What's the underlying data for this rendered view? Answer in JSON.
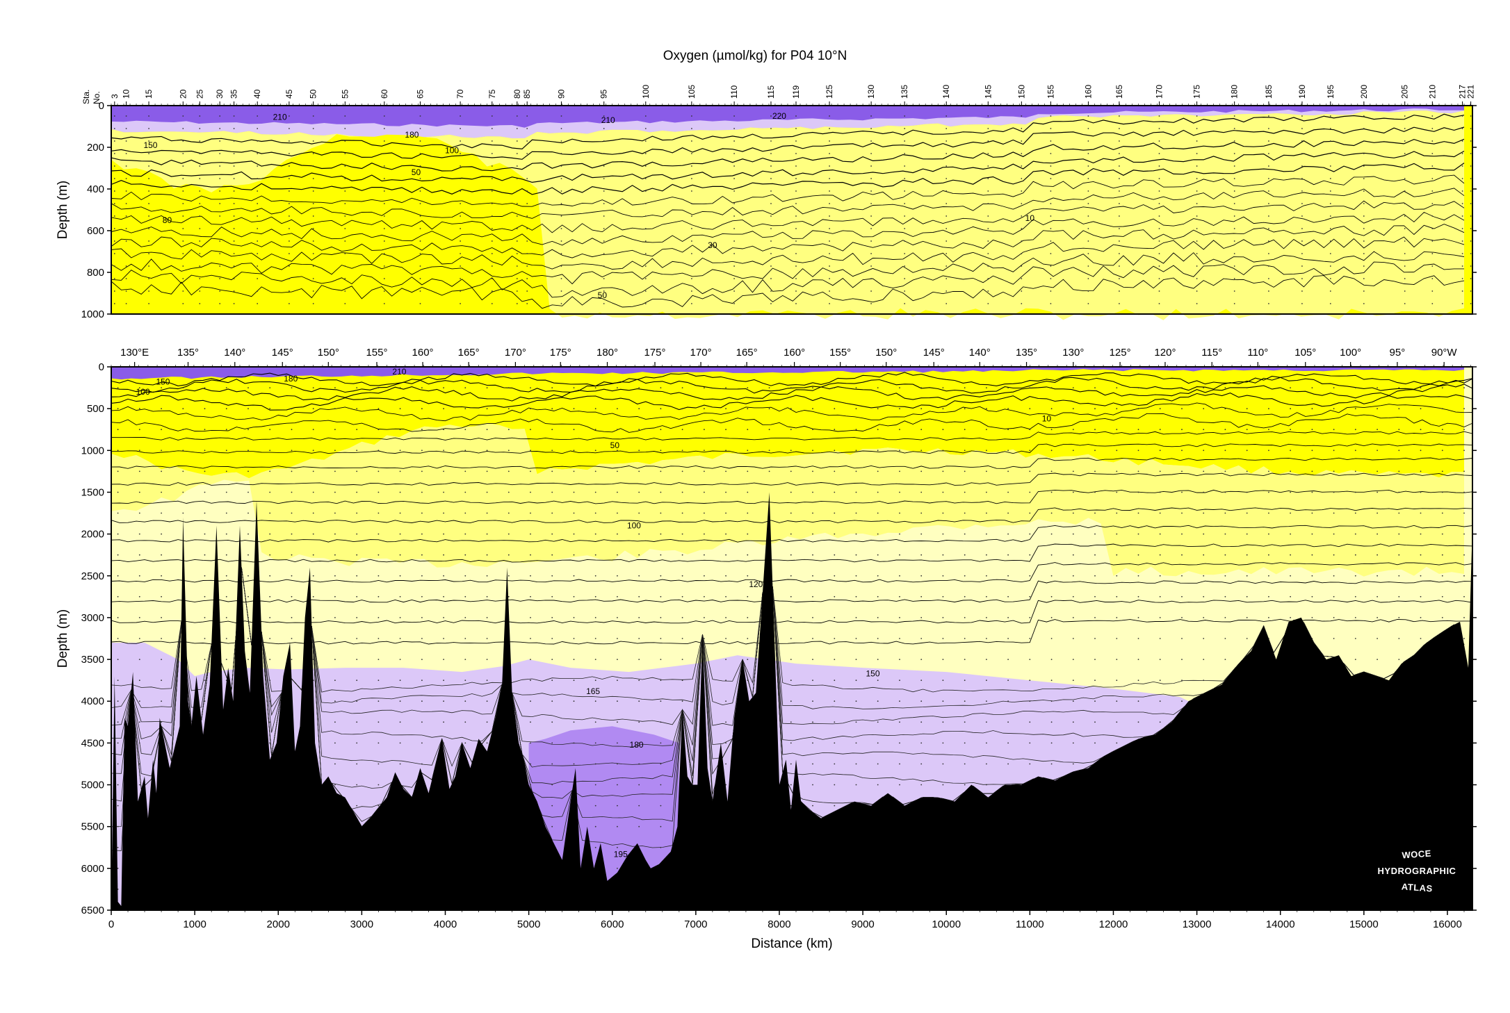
{
  "figure": {
    "title": "Oxygen (µmol/kg) for P04 10°N",
    "ylabel_top": "Depth (m)",
    "ylabel_bottom": "Depth (m)",
    "xlabel": "Distance (km)",
    "station_axis_label": [
      "Sta.",
      "No."
    ],
    "logo": [
      "WOCE",
      "HYDROGRAPHIC",
      "ATLAS"
    ]
  },
  "colors": {
    "very_low": "#ffff00",
    "low": "#ffff80",
    "mid": "#ffffc0",
    "high": "#dcc8f8",
    "higher": "#b18af2",
    "highest": "#8a5ce8",
    "bathymetry": "#000000",
    "contour": "#000000"
  },
  "chart_data": [
    {
      "type": "heatmap",
      "panel": "upper",
      "variable": "Oxygen",
      "units": "µmol/kg",
      "ylabel": "Depth (m)",
      "xlim": [
        0,
        16300
      ],
      "ylim": [
        1000,
        0
      ],
      "yticks": [
        0,
        200,
        400,
        600,
        800,
        1000
      ],
      "station_ticks": [
        {
          "label": "3",
          "km": 40
        },
        {
          "label": "10",
          "km": 180
        },
        {
          "label": "15",
          "km": 450
        },
        {
          "label": "20",
          "km": 860
        },
        {
          "label": "25",
          "km": 1060
        },
        {
          "label": "30",
          "km": 1300
        },
        {
          "label": "35",
          "km": 1470
        },
        {
          "label": "40",
          "km": 1750
        },
        {
          "label": "45",
          "km": 2130
        },
        {
          "label": "50",
          "km": 2420
        },
        {
          "label": "55",
          "km": 2800
        },
        {
          "label": "60",
          "km": 3270
        },
        {
          "label": "65",
          "km": 3700
        },
        {
          "label": "70",
          "km": 4180
        },
        {
          "label": "75",
          "km": 4560
        },
        {
          "label": "80",
          "km": 4860
        },
        {
          "label": "85",
          "km": 4980
        },
        {
          "label": "90",
          "km": 5390
        },
        {
          "label": "95",
          "km": 5900
        },
        {
          "label": "100",
          "km": 6400
        },
        {
          "label": "105",
          "km": 6950
        },
        {
          "label": "110",
          "km": 7460
        },
        {
          "label": "115",
          "km": 7900
        },
        {
          "label": "119",
          "km": 8200
        },
        {
          "label": "125",
          "km": 8600
        },
        {
          "label": "130",
          "km": 9100
        },
        {
          "label": "135",
          "km": 9500
        },
        {
          "label": "140",
          "km": 10000
        },
        {
          "label": "145",
          "km": 10500
        },
        {
          "label": "150",
          "km": 10900
        },
        {
          "label": "155",
          "km": 11250
        },
        {
          "label": "160",
          "km": 11700
        },
        {
          "label": "165",
          "km": 12070
        },
        {
          "label": "170",
          "km": 12550
        },
        {
          "label": "175",
          "km": 13000
        },
        {
          "label": "180",
          "km": 13450
        },
        {
          "label": "185",
          "km": 13860
        },
        {
          "label": "190",
          "km": 14260
        },
        {
          "label": "195",
          "km": 14600
        },
        {
          "label": "200",
          "km": 15000
        },
        {
          "label": "205",
          "km": 15490
        },
        {
          "label": "210",
          "km": 15820
        },
        {
          "label": "217",
          "km": 16180
        },
        {
          "label": "221",
          "km": 16280
        }
      ],
      "contour_labels": [
        {
          "text": "210",
          "km": 2020,
          "depth": 55
        },
        {
          "text": "210",
          "km": 5950,
          "depth": 70
        },
        {
          "text": "220",
          "km": 8000,
          "depth": 50
        },
        {
          "text": "180",
          "km": 3600,
          "depth": 140
        },
        {
          "text": "150",
          "km": 470,
          "depth": 190
        },
        {
          "text": "100",
          "km": 4080,
          "depth": 215
        },
        {
          "text": "50",
          "km": 3650,
          "depth": 320
        },
        {
          "text": "80",
          "km": 670,
          "depth": 550
        },
        {
          "text": "30",
          "km": 7200,
          "depth": 670
        },
        {
          "text": "10",
          "km": 11000,
          "depth": 540
        },
        {
          "text": "50",
          "km": 5880,
          "depth": 910
        }
      ]
    },
    {
      "type": "heatmap",
      "panel": "lower",
      "variable": "Oxygen",
      "units": "µmol/kg",
      "xlabel": "Distance (km)",
      "ylabel": "Depth (m)",
      "xlim": [
        0,
        16300
      ],
      "ylim": [
        6500,
        0
      ],
      "xticks": [
        0,
        1000,
        2000,
        3000,
        4000,
        5000,
        6000,
        7000,
        8000,
        9000,
        10000,
        11000,
        12000,
        13000,
        14000,
        15000,
        16000
      ],
      "yticks": [
        0,
        500,
        1000,
        1500,
        2000,
        2500,
        3000,
        3500,
        4000,
        4500,
        5000,
        5500,
        6000,
        6500
      ],
      "longitude_ticks": [
        {
          "label": "130°E",
          "km": 280
        },
        {
          "label": "135°",
          "km": 920
        },
        {
          "label": "140°",
          "km": 1480
        },
        {
          "label": "145°",
          "km": 2050
        },
        {
          "label": "150°",
          "km": 2600
        },
        {
          "label": "155°",
          "km": 3180
        },
        {
          "label": "160°",
          "km": 3730
        },
        {
          "label": "165°",
          "km": 4280
        },
        {
          "label": "170°",
          "km": 4840
        },
        {
          "label": "175°",
          "km": 5380
        },
        {
          "label": "180°",
          "km": 5940
        },
        {
          "label": "175°",
          "km": 6510
        },
        {
          "label": "170°",
          "km": 7060
        },
        {
          "label": "165°",
          "km": 7610
        },
        {
          "label": "160°",
          "km": 8180
        },
        {
          "label": "155°",
          "km": 8730
        },
        {
          "label": "150°",
          "km": 9280
        },
        {
          "label": "145°",
          "km": 9850
        },
        {
          "label": "140°",
          "km": 10400
        },
        {
          "label": "135°",
          "km": 10960
        },
        {
          "label": "130°",
          "km": 11520
        },
        {
          "label": "125°",
          "km": 12080
        },
        {
          "label": "120°",
          "km": 12620
        },
        {
          "label": "115°",
          "km": 13180
        },
        {
          "label": "110°",
          "km": 13730
        },
        {
          "label": "105°",
          "km": 14300
        },
        {
          "label": "100°",
          "km": 14840
        },
        {
          "label": "95°",
          "km": 15400
        },
        {
          "label": "90°W",
          "km": 15960
        }
      ],
      "contour_labels": [
        {
          "text": "210",
          "km": 3450,
          "depth": 60
        },
        {
          "text": "150",
          "km": 620,
          "depth": 180
        },
        {
          "text": "180",
          "km": 2150,
          "depth": 140
        },
        {
          "text": "100",
          "km": 380,
          "depth": 300
        },
        {
          "text": "10",
          "km": 11200,
          "depth": 620
        },
        {
          "text": "50",
          "km": 6030,
          "depth": 940
        },
        {
          "text": "100",
          "km": 6260,
          "depth": 1900
        },
        {
          "text": "120",
          "km": 7720,
          "depth": 2600
        },
        {
          "text": "150",
          "km": 9120,
          "depth": 3670
        },
        {
          "text": "165",
          "km": 5770,
          "depth": 3880
        },
        {
          "text": "180",
          "km": 6290,
          "depth": 4520
        },
        {
          "text": "195",
          "km": 6100,
          "depth": 5830
        }
      ],
      "bathymetry_depth_m": [
        [
          0,
          6500
        ],
        [
          40,
          3700
        ],
        [
          80,
          6400
        ],
        [
          120,
          6450
        ],
        [
          160,
          4200
        ],
        [
          200,
          4300
        ],
        [
          260,
          3650
        ],
        [
          320,
          5200
        ],
        [
          400,
          4900
        ],
        [
          440,
          5400
        ],
        [
          500,
          4700
        ],
        [
          540,
          5100
        ],
        [
          580,
          4200
        ],
        [
          700,
          4800
        ],
        [
          820,
          4300
        ],
        [
          860,
          1800
        ],
        [
          920,
          4000
        ],
        [
          960,
          4300
        ],
        [
          1020,
          3700
        ],
        [
          1100,
          4400
        ],
        [
          1180,
          3800
        ],
        [
          1260,
          1900
        ],
        [
          1340,
          4100
        ],
        [
          1400,
          3600
        ],
        [
          1460,
          4000
        ],
        [
          1540,
          1900
        ],
        [
          1600,
          3400
        ],
        [
          1660,
          3900
        ],
        [
          1740,
          1600
        ],
        [
          1820,
          3700
        ],
        [
          1900,
          4700
        ],
        [
          1980,
          4500
        ],
        [
          2060,
          3700
        ],
        [
          2140,
          3300
        ],
        [
          2200,
          4600
        ],
        [
          2260,
          4300
        ],
        [
          2320,
          3000
        ],
        [
          2380,
          2400
        ],
        [
          2440,
          4500
        ],
        [
          2520,
          5000
        ],
        [
          2600,
          4900
        ],
        [
          2700,
          5100
        ],
        [
          2800,
          5150
        ],
        [
          3000,
          5500
        ],
        [
          3100,
          5400
        ],
        [
          3300,
          5150
        ],
        [
          3400,
          4850
        ],
        [
          3500,
          5050
        ],
        [
          3600,
          5150
        ],
        [
          3700,
          4800
        ],
        [
          3800,
          5100
        ],
        [
          3900,
          4700
        ],
        [
          3960,
          4450
        ],
        [
          4050,
          5050
        ],
        [
          4120,
          4900
        ],
        [
          4200,
          4500
        ],
        [
          4300,
          4800
        ],
        [
          4400,
          4450
        ],
        [
          4500,
          4600
        ],
        [
          4600,
          4200
        ],
        [
          4680,
          3800
        ],
        [
          4740,
          2400
        ],
        [
          4800,
          3900
        ],
        [
          4880,
          4500
        ],
        [
          4940,
          4700
        ],
        [
          5000,
          5000
        ],
        [
          5100,
          5200
        ],
        [
          5200,
          5500
        ],
        [
          5300,
          5700
        ],
        [
          5400,
          5900
        ],
        [
          5500,
          5200
        ],
        [
          5560,
          4800
        ],
        [
          5620,
          6000
        ],
        [
          5700,
          5500
        ],
        [
          5780,
          6000
        ],
        [
          5860,
          5700
        ],
        [
          5940,
          6150
        ],
        [
          6060,
          6050
        ],
        [
          6180,
          5850
        ],
        [
          6300,
          5700
        ],
        [
          6400,
          5900
        ],
        [
          6460,
          6000
        ],
        [
          6560,
          5950
        ],
        [
          6700,
          5800
        ],
        [
          6780,
          5500
        ],
        [
          6840,
          4100
        ],
        [
          6900,
          4900
        ],
        [
          6960,
          5000
        ],
        [
          7020,
          5000
        ],
        [
          7080,
          3200
        ],
        [
          7140,
          4800
        ],
        [
          7200,
          5200
        ],
        [
          7300,
          4500
        ],
        [
          7380,
          5200
        ],
        [
          7460,
          4200
        ],
        [
          7560,
          3500
        ],
        [
          7640,
          4000
        ],
        [
          7720,
          3900
        ],
        [
          7800,
          2700
        ],
        [
          7880,
          1500
        ],
        [
          7940,
          3200
        ],
        [
          8000,
          5000
        ],
        [
          8080,
          4700
        ],
        [
          8140,
          5300
        ],
        [
          8200,
          4700
        ],
        [
          8260,
          5200
        ],
        [
          8360,
          5300
        ],
        [
          8500,
          5400
        ],
        [
          8700,
          5300
        ],
        [
          8900,
          5200
        ],
        [
          9100,
          5250
        ],
        [
          9300,
          5100
        ],
        [
          9500,
          5250
        ],
        [
          9700,
          5150
        ],
        [
          9900,
          5150
        ],
        [
          10100,
          5200
        ],
        [
          10300,
          5000
        ],
        [
          10500,
          5150
        ],
        [
          10700,
          5000
        ],
        [
          10900,
          5000
        ],
        [
          11100,
          4900
        ],
        [
          11300,
          4950
        ],
        [
          11500,
          4850
        ],
        [
          11700,
          4800
        ],
        [
          11900,
          4650
        ],
        [
          12100,
          4550
        ],
        [
          12300,
          4450
        ],
        [
          12500,
          4400
        ],
        [
          12700,
          4250
        ],
        [
          12900,
          4000
        ],
        [
          13100,
          3900
        ],
        [
          13300,
          3800
        ],
        [
          13500,
          3550
        ],
        [
          13650,
          3400
        ],
        [
          13800,
          3100
        ],
        [
          13950,
          3500
        ],
        [
          14100,
          3050
        ],
        [
          14250,
          3000
        ],
        [
          14400,
          3300
        ],
        [
          14550,
          3500
        ],
        [
          14700,
          3450
        ],
        [
          14850,
          3700
        ],
        [
          15000,
          3650
        ],
        [
          15150,
          3700
        ],
        [
          15300,
          3750
        ],
        [
          15450,
          3550
        ],
        [
          15600,
          3450
        ],
        [
          15750,
          3300
        ],
        [
          15900,
          3200
        ],
        [
          16050,
          3100
        ],
        [
          16150,
          3050
        ],
        [
          16250,
          3600
        ],
        [
          16300,
          1900
        ]
      ],
      "deep_layers_depth_m": {
        "top_150": [
          [
            0,
            3300
          ],
          [
            400,
            3300
          ],
          [
            800,
            3500
          ],
          [
            1000,
            3700
          ],
          [
            1200,
            3650
          ],
          [
            1600,
            3600
          ],
          [
            2100,
            3620
          ],
          [
            2800,
            3600
          ],
          [
            3500,
            3600
          ],
          [
            4200,
            3650
          ],
          [
            4700,
            3580
          ],
          [
            5000,
            3500
          ],
          [
            5500,
            3600
          ],
          [
            6200,
            3650
          ],
          [
            7000,
            3550
          ],
          [
            7500,
            3450
          ],
          [
            8200,
            3550
          ],
          [
            9000,
            3600
          ],
          [
            10000,
            3650
          ],
          [
            11000,
            3750
          ],
          [
            12000,
            3850
          ],
          [
            12800,
            3950
          ],
          [
            13000,
            4050
          ]
        ],
        "top_180": [
          [
            5000,
            4500
          ],
          [
            5200,
            4450
          ],
          [
            5500,
            4350
          ],
          [
            6000,
            4300
          ],
          [
            6500,
            4400
          ],
          [
            6800,
            4500
          ]
        ]
      }
    }
  ]
}
